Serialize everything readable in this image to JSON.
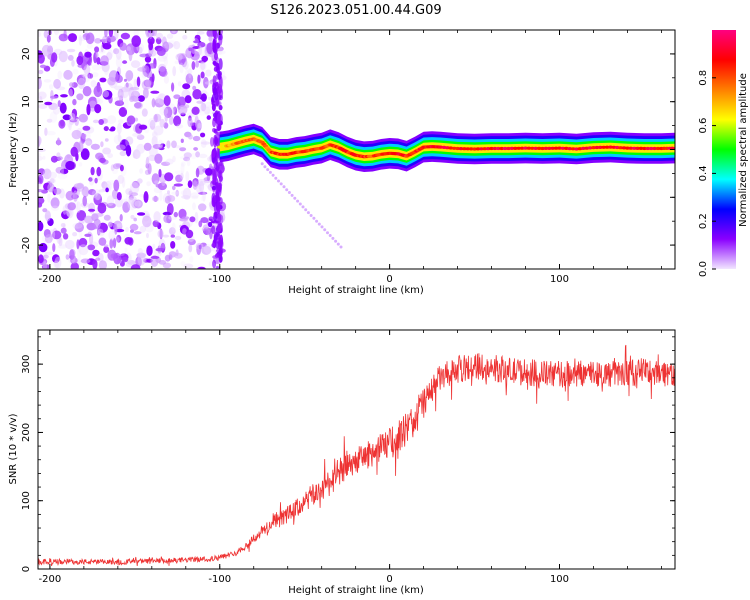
{
  "figure": {
    "title": "S126.2023.051.00.44.G09"
  },
  "chart_data": [
    {
      "type": "heatmap",
      "title": "S126.2023.051.00.44.G09",
      "xlabel": "Height of straight line (km)",
      "ylabel": "Frequency (Hz)",
      "colorbar_label": "Normalized spectral amplitude",
      "xlim": [
        -207,
        168
      ],
      "ylim": [
        -25,
        25
      ],
      "xticks": [
        -200,
        -100,
        0,
        100
      ],
      "yticks": [
        -20,
        -10,
        0,
        10,
        20
      ],
      "colorbar_range": [
        0.0,
        1.0
      ],
      "colorbar_ticks": [
        0.0,
        0.2,
        0.4,
        0.6,
        0.8
      ],
      "colormap": [
        "#f2e6ff",
        "#8a00ff",
        "#0000ff",
        "#00ffff",
        "#00ff00",
        "#ffff00",
        "#ff7f00",
        "#ff0000",
        "#ff0080"
      ],
      "noise_region_x": [
        -207,
        -98
      ],
      "ridge_x": [
        -100,
        -95,
        -90,
        -85,
        -80,
        -75,
        -70,
        -65,
        -60,
        -55,
        -50,
        -45,
        -40,
        -35,
        -30,
        -25,
        -20,
        -15,
        -10,
        -5,
        0,
        5,
        10,
        15,
        20,
        25,
        30,
        40,
        50,
        60,
        70,
        80,
        90,
        100,
        110,
        120,
        130,
        140,
        150,
        160,
        168
      ],
      "ridge_freq": [
        0.5,
        0.8,
        1.3,
        1.8,
        2.2,
        1.5,
        -0.5,
        -1,
        -1,
        -0.6,
        -0.4,
        0,
        0.3,
        1,
        0.4,
        -0.5,
        -1.2,
        -1.5,
        -1.4,
        -1,
        -0.8,
        -0.9,
        -1.4,
        -0.5,
        0.5,
        0.6,
        0.5,
        0.2,
        0.1,
        0.2,
        0.2,
        0.3,
        0.2,
        0.3,
        0.1,
        0.4,
        0.5,
        0.3,
        0.2,
        0.2,
        0.3
      ],
      "ridge_amplitude": [
        0.6,
        0.7,
        0.75,
        0.8,
        0.8,
        0.75,
        0.8,
        0.85,
        0.85,
        0.85,
        0.8,
        0.8,
        0.8,
        0.8,
        0.85,
        0.85,
        0.85,
        0.85,
        0.8,
        0.85,
        0.9,
        0.9,
        0.85,
        0.85,
        0.85,
        0.9,
        0.9,
        0.9,
        0.9,
        0.9,
        0.9,
        0.9,
        0.9,
        0.9,
        0.9,
        0.9,
        0.9,
        0.9,
        0.9,
        0.9,
        0.9
      ]
    },
    {
      "type": "line",
      "xlabel": "Height of straight line (km)",
      "ylabel": "SNR (10 * v/v)",
      "xlim": [
        -207,
        168
      ],
      "ylim": [
        0,
        350
      ],
      "xticks": [
        -200,
        -100,
        0,
        100
      ],
      "yticks": [
        0,
        100,
        200,
        300
      ],
      "line_color": "#ee3333",
      "series": [
        {
          "x": [
            -207,
            -190,
            -170,
            -150,
            -130,
            -115,
            -105,
            -100,
            -95,
            -90,
            -85,
            -80,
            -75,
            -70,
            -65,
            -60,
            -55,
            -50,
            -45,
            -40,
            -35,
            -30,
            -25,
            -20,
            -15,
            -10,
            -5,
            0,
            5,
            10,
            15,
            20,
            25,
            30,
            40,
            50,
            60,
            70,
            80,
            90,
            100,
            110,
            120,
            130,
            140,
            150,
            160,
            168
          ],
          "y": [
            10,
            11,
            10,
            11,
            12,
            14,
            15,
            17,
            20,
            25,
            33,
            45,
            55,
            65,
            72,
            80,
            88,
            98,
            108,
            118,
            128,
            140,
            150,
            158,
            165,
            170,
            178,
            185,
            195,
            205,
            222,
            242,
            265,
            280,
            292,
            297,
            295,
            290,
            288,
            286,
            285,
            286,
            288,
            285,
            287,
            290,
            288,
            285
          ]
        }
      ]
    }
  ]
}
